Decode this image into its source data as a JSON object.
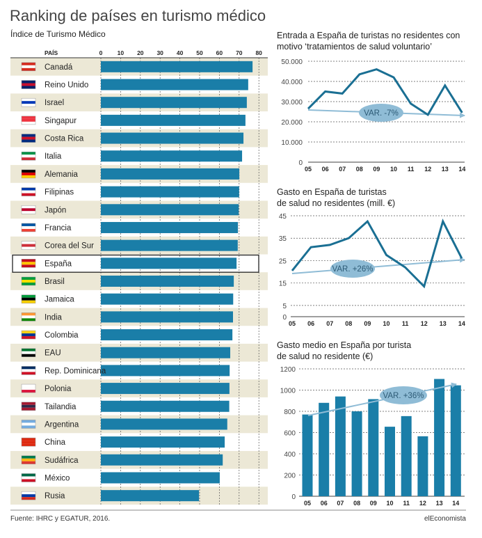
{
  "title": "Ranking de países en turismo médico",
  "footer": {
    "source": "Fuente: IHRC y EGATUR, 2016.",
    "brand": "elEconomista"
  },
  "colors": {
    "bar": "#1a7ea8",
    "band": "#ece8d6",
    "arrow": "#8fbcd6",
    "ellipse": "#8fbcd6",
    "line": "#1a6f93"
  },
  "chart_data": [
    {
      "type": "bar",
      "orientation": "horizontal",
      "title": "Índice de Turismo Médico",
      "category_header": "PAÍS",
      "xlim": [
        0,
        80
      ],
      "xticks": [
        "0",
        "10",
        "20",
        "30",
        "40",
        "50",
        "60",
        "70",
        "80"
      ],
      "highlight": "España",
      "categories": [
        "Canadá",
        "Reino Unido",
        "Israel",
        "Singapur",
        "Costa Rica",
        "Italia",
        "Alemania",
        "Filipinas",
        "Japón",
        "Francia",
        "Corea del Sur",
        "España",
        "Brasil",
        "Jamaica",
        "India",
        "Colombia",
        "EAU",
        "Rep. Dominicana",
        "Polonia",
        "Tailandia",
        "Argentina",
        "China",
        "Sudáfrica",
        "México",
        "Rusia"
      ],
      "flag_icons": [
        "canada-flag-icon",
        "uk-flag-icon",
        "israel-flag-icon",
        "singapore-flag-icon",
        "costa-rica-flag-icon",
        "italy-flag-icon",
        "germany-flag-icon",
        "philippines-flag-icon",
        "japan-flag-icon",
        "france-flag-icon",
        "south-korea-flag-icon",
        "spain-flag-icon",
        "brazil-flag-icon",
        "jamaica-flag-icon",
        "india-flag-icon",
        "colombia-flag-icon",
        "uae-flag-icon",
        "dominican-republic-flag-icon",
        "poland-flag-icon",
        "thailand-flag-icon",
        "argentina-flag-icon",
        "china-flag-icon",
        "south-africa-flag-icon",
        "mexico-flag-icon",
        "russia-flag-icon"
      ],
      "flag_colors": [
        [
          "#d52b1e",
          "#fff",
          "#d52b1e"
        ],
        [
          "#012169",
          "#c8102e",
          "#012169"
        ],
        [
          "#fff",
          "#0038b8",
          "#fff"
        ],
        [
          "#ef3340",
          "#ef3340",
          "#fff"
        ],
        [
          "#002b7f",
          "#ce1126",
          "#002b7f"
        ],
        [
          "#009246",
          "#fff",
          "#ce2b37"
        ],
        [
          "#000",
          "#dd0000",
          "#ffce00"
        ],
        [
          "#0038a8",
          "#fff",
          "#ce1126"
        ],
        [
          "#fff",
          "#bc002d",
          "#fff"
        ],
        [
          "#0055a4",
          "#fff",
          "#ef4135"
        ],
        [
          "#fff",
          "#cd2e3a",
          "#fff"
        ],
        [
          "#c60b1e",
          "#ffc400",
          "#c60b1e"
        ],
        [
          "#009c3b",
          "#ffdf00",
          "#009c3b"
        ],
        [
          "#009b3a",
          "#000",
          "#fed100"
        ],
        [
          "#ff9933",
          "#fff",
          "#138808"
        ],
        [
          "#fcd116",
          "#003893",
          "#ce1126"
        ],
        [
          "#00732f",
          "#fff",
          "#000"
        ],
        [
          "#002d62",
          "#fff",
          "#ce1126"
        ],
        [
          "#fff",
          "#fff",
          "#dc143c"
        ],
        [
          "#a51931",
          "#2d2a4a",
          "#a51931"
        ],
        [
          "#74acdf",
          "#fff",
          "#74acdf"
        ],
        [
          "#de2910",
          "#de2910",
          "#de2910"
        ],
        [
          "#007a4d",
          "#ffb612",
          "#de3831"
        ],
        [
          "#006847",
          "#fff",
          "#ce1126"
        ],
        [
          "#fff",
          "#0039a6",
          "#d52b1e"
        ]
      ],
      "values": [
        76.8,
        74.6,
        73.9,
        73.2,
        72.2,
        71.5,
        70.1,
        70.0,
        69.8,
        69.4,
        69.3,
        68.7,
        67.3,
        67.0,
        66.9,
        66.6,
        65.5,
        65.2,
        65.1,
        65.0,
        64.0,
        62.7,
        61.7,
        60.2,
        49.7
      ],
      "grid": true
    },
    {
      "type": "line",
      "title_lines": [
        "Entrada a España de turistas no residentes con",
        "motivo ‘tratamientos de salud voluntario’"
      ],
      "x": [
        "05",
        "06",
        "07",
        "08",
        "09",
        "10",
        "11",
        "12",
        "13",
        "14"
      ],
      "values": [
        26500,
        35000,
        34000,
        43500,
        46000,
        42000,
        29000,
        23500,
        38000,
        24500
      ],
      "ylim": [
        0,
        50000
      ],
      "yticks": [
        "0",
        "10.000",
        "20.000",
        "30.000",
        "40.000",
        "50.000"
      ],
      "annotation": "VAR. -7%",
      "grid": true
    },
    {
      "type": "line",
      "title_lines": [
        "Gasto en España de turistas",
        "de salud  no residentes (mill. €)"
      ],
      "x": [
        "05",
        "06",
        "07",
        "08",
        "09",
        "10",
        "11",
        "12",
        "13",
        "14"
      ],
      "values": [
        20.5,
        31,
        32,
        35,
        42.5,
        27.5,
        22,
        13.5,
        42.5,
        26
      ],
      "ylim": [
        0,
        45
      ],
      "yticks": [
        "0",
        "5",
        "15",
        "25",
        "35",
        "45"
      ],
      "annotation": "VAR. +26%",
      "grid": true
    },
    {
      "type": "bar",
      "title_lines": [
        "Gasto medio en España por turista",
        "de salud no residente (€)"
      ],
      "categories": [
        "05",
        "06",
        "07",
        "08",
        "09",
        "10",
        "11",
        "12",
        "13",
        "14"
      ],
      "values": [
        770,
        880,
        940,
        800,
        915,
        655,
        755,
        565,
        1105,
        1045
      ],
      "ylim": [
        0,
        1200
      ],
      "yticks": [
        "0",
        "200",
        "400",
        "600",
        "800",
        "1000",
        "1200"
      ],
      "annotation": "VAR. +36%",
      "grid": true
    }
  ]
}
